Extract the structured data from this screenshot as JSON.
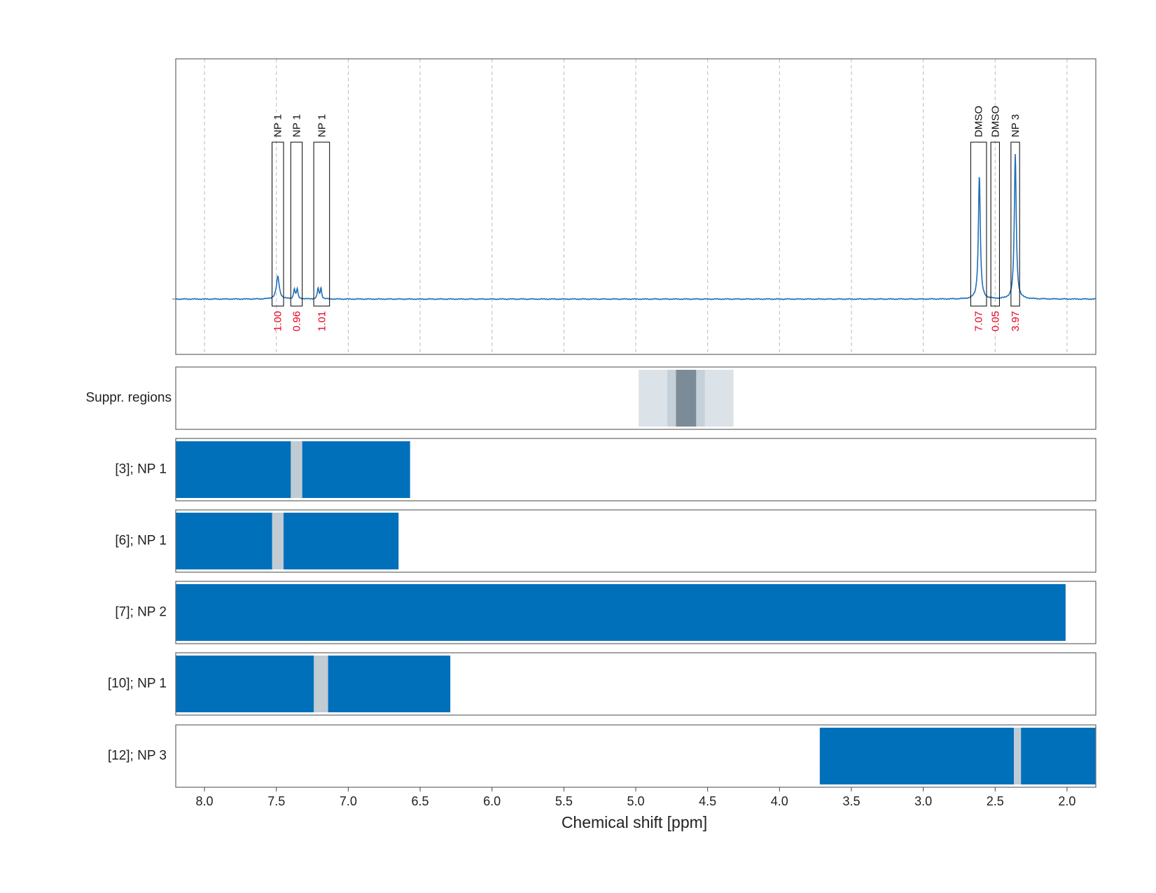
{
  "chart_data": {
    "type": "line",
    "xlabel": "Chemical shift [ppm]",
    "xlim": [
      8.2,
      1.8
    ],
    "x_ticks": [
      "8.0",
      "7.5",
      "7.0",
      "6.5",
      "6.0",
      "5.5",
      "5.0",
      "4.5",
      "4.0",
      "3.5",
      "3.0",
      "2.5",
      "2.0"
    ],
    "x_tick_values": [
      8.0,
      7.5,
      7.0,
      6.5,
      6.0,
      5.5,
      5.0,
      4.5,
      4.0,
      3.5,
      3.0,
      2.5,
      2.0
    ],
    "grid": true,
    "spectrum": {
      "baseline": 0,
      "ymax": 1.0,
      "peaks": [
        {
          "ppm": 7.49,
          "height": 0.15,
          "width": 0.012
        },
        {
          "ppm": 7.375,
          "height": 0.065,
          "width": 0.006
        },
        {
          "ppm": 7.355,
          "height": 0.065,
          "width": 0.006
        },
        {
          "ppm": 7.21,
          "height": 0.07,
          "width": 0.006
        },
        {
          "ppm": 7.19,
          "height": 0.07,
          "width": 0.006
        },
        {
          "ppm": 2.61,
          "height": 0.82,
          "width": 0.008
        },
        {
          "ppm": 2.36,
          "height": 0.96,
          "width": 0.008
        }
      ]
    },
    "integration_regions": [
      {
        "label": "NP 1",
        "from": 7.53,
        "to": 7.45,
        "integral": "1.00"
      },
      {
        "label": "NP 1",
        "from": 7.4,
        "to": 7.32,
        "integral": "0.96"
      },
      {
        "label": "NP 1",
        "from": 7.24,
        "to": 7.13,
        "integral": "1.01"
      },
      {
        "label": "DMSO",
        "from": 2.67,
        "to": 2.56,
        "integral": "7.07"
      },
      {
        "label": "DMSO",
        "from": 2.53,
        "to": 2.47,
        "integral": "0.05"
      },
      {
        "label": "NP 3",
        "from": 2.39,
        "to": 2.33,
        "integral": "3.97"
      }
    ],
    "suppression": {
      "label": "Suppr. regions",
      "bands": [
        {
          "from": 4.98,
          "to": 4.32,
          "color": "#dbe2e8"
        },
        {
          "from": 4.78,
          "to": 4.52,
          "color": "#c5d0d8"
        },
        {
          "from": 4.72,
          "to": 4.58,
          "color": "#7b8b97"
        }
      ]
    },
    "rows": [
      {
        "label": "[3]; NP 1",
        "bar": [
          8.2,
          6.57
        ],
        "gap": [
          7.4,
          7.32
        ]
      },
      {
        "label": "[6]; NP 1",
        "bar": [
          8.2,
          6.65
        ],
        "gap": [
          7.53,
          7.45
        ]
      },
      {
        "label": "[7]; NP 2",
        "bar": [
          8.2,
          2.01
        ],
        "gap": null
      },
      {
        "label": "[10]; NP 1",
        "bar": [
          8.2,
          6.29
        ],
        "gap": [
          7.24,
          7.14
        ]
      },
      {
        "label": "[12]; NP 3",
        "bar": [
          3.72,
          1.8
        ],
        "gap": [
          2.37,
          2.32
        ]
      }
    ],
    "colors": {
      "line": "#1f6fba",
      "bar": "#0070bb",
      "gap": "#c0cbd3",
      "integral_text": "#e8001c",
      "label_text": "#111111",
      "frame": "#666666",
      "grid": "#bbbbbb"
    }
  }
}
